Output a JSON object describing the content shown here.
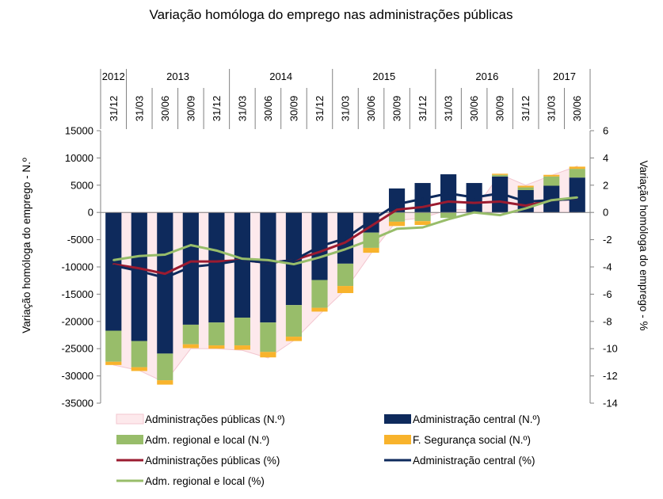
{
  "chart_data": {
    "type": "bar",
    "title": "Variação homóloga do emprego nas administrações públicas",
    "ylabel_left": "Variação homóloga do emprego - N.º",
    "ylabel_right": "Variação homóloga do emprego - %",
    "ylim_left": [
      -35000,
      15000
    ],
    "ylim_right": [
      -14,
      6
    ],
    "yticks_left": [
      "15000",
      "10000",
      "5000",
      "0",
      "-5000",
      "-10000",
      "-15000",
      "-20000",
      "-25000",
      "-30000",
      "-35000"
    ],
    "yticks_right": [
      "6",
      "4",
      "2",
      "0",
      "-2",
      "-4",
      "-6",
      "-8",
      "-10",
      "-12",
      "-14"
    ],
    "categories": [
      "31/12",
      "31/03",
      "30/06",
      "30/09",
      "31/12",
      "31/03",
      "30/06",
      "30/09",
      "31/12",
      "31/03",
      "30/06",
      "30/09",
      "31/12",
      "31/03",
      "30/06",
      "30/09",
      "31/12",
      "31/03",
      "30/06"
    ],
    "years": [
      {
        "label": "2012",
        "start": 0,
        "end": 0
      },
      {
        "label": "2013",
        "start": 1,
        "end": 4
      },
      {
        "label": "2014",
        "start": 5,
        "end": 8
      },
      {
        "label": "2015",
        "start": 9,
        "end": 12
      },
      {
        "label": "2016",
        "start": 13,
        "end": 16
      },
      {
        "label": "2017",
        "start": 17,
        "end": 18
      }
    ],
    "series": [
      {
        "name": "Administrações públicas (N.º)",
        "kind": "area",
        "axis": "left",
        "color": "#fde9ec",
        "values": [
          -28000,
          -29000,
          -31200,
          -25000,
          -25000,
          -25300,
          -26700,
          -23500,
          -18700,
          -14200,
          -7500,
          -1500,
          -1000,
          500,
          500,
          7000,
          5000,
          6800,
          8500
        ]
      },
      {
        "name": "Administração central (N.º)",
        "kind": "bar",
        "axis": "left",
        "color": "#0e2a5c",
        "values": [
          -21700,
          -23600,
          -25900,
          -20600,
          -20200,
          -19300,
          -20200,
          -17000,
          -12400,
          -9400,
          -3700,
          4400,
          5400,
          7000,
          5400,
          6600,
          4100,
          4900,
          6400
        ]
      },
      {
        "name": "Adm. regional e local (N.º)",
        "kind": "bar",
        "axis": "left",
        "color": "#98bd6a",
        "values": [
          -5700,
          -4800,
          -4900,
          -3600,
          -4200,
          -5100,
          -5400,
          -5800,
          -5100,
          -4100,
          -2800,
          -1700,
          -1600,
          -1000,
          0,
          300,
          500,
          1700,
          1600
        ]
      },
      {
        "name": "F. Segurança social  (N.º)",
        "kind": "bar",
        "axis": "left",
        "color": "#f8b32c",
        "values": [
          -600,
          -700,
          -800,
          -700,
          -600,
          -800,
          -1000,
          -800,
          -700,
          -1300,
          -900,
          -800,
          -700,
          0,
          0,
          200,
          300,
          300,
          400
        ]
      },
      {
        "name": "Administrações públicas (%)",
        "kind": "line",
        "axis": "right",
        "color": "#9b1b30",
        "values": [
          -3.8,
          -4.1,
          -4.5,
          -3.6,
          -3.6,
          -3.5,
          -3.7,
          -3.5,
          -2.9,
          -2.2,
          -1.0,
          0.2,
          0.4,
          0.8,
          0.7,
          0.8,
          0.5,
          0.9,
          1.0
        ]
      },
      {
        "name": "Administração central  (%)",
        "kind": "line",
        "axis": "right",
        "color": "#0e2a5c",
        "values": [
          -3.9,
          -4.3,
          -4.8,
          -4.0,
          -3.8,
          -3.5,
          -3.7,
          -3.5,
          -2.5,
          -1.9,
          -0.6,
          0.6,
          1.0,
          1.4,
          1.1,
          1.4,
          0.8,
          0.9,
          1.0
        ]
      },
      {
        "name": "Adm. regional e local (%)",
        "kind": "line",
        "axis": "right",
        "color": "#98bd6a",
        "values": [
          -3.5,
          -3.2,
          -3.1,
          -2.4,
          -2.8,
          -3.4,
          -3.5,
          -3.8,
          -3.3,
          -2.7,
          -2.0,
          -1.2,
          -1.1,
          -0.5,
          0.0,
          -0.2,
          0.3,
          0.9,
          1.1
        ]
      }
    ],
    "legend_placement": "bottom",
    "grid": false
  }
}
